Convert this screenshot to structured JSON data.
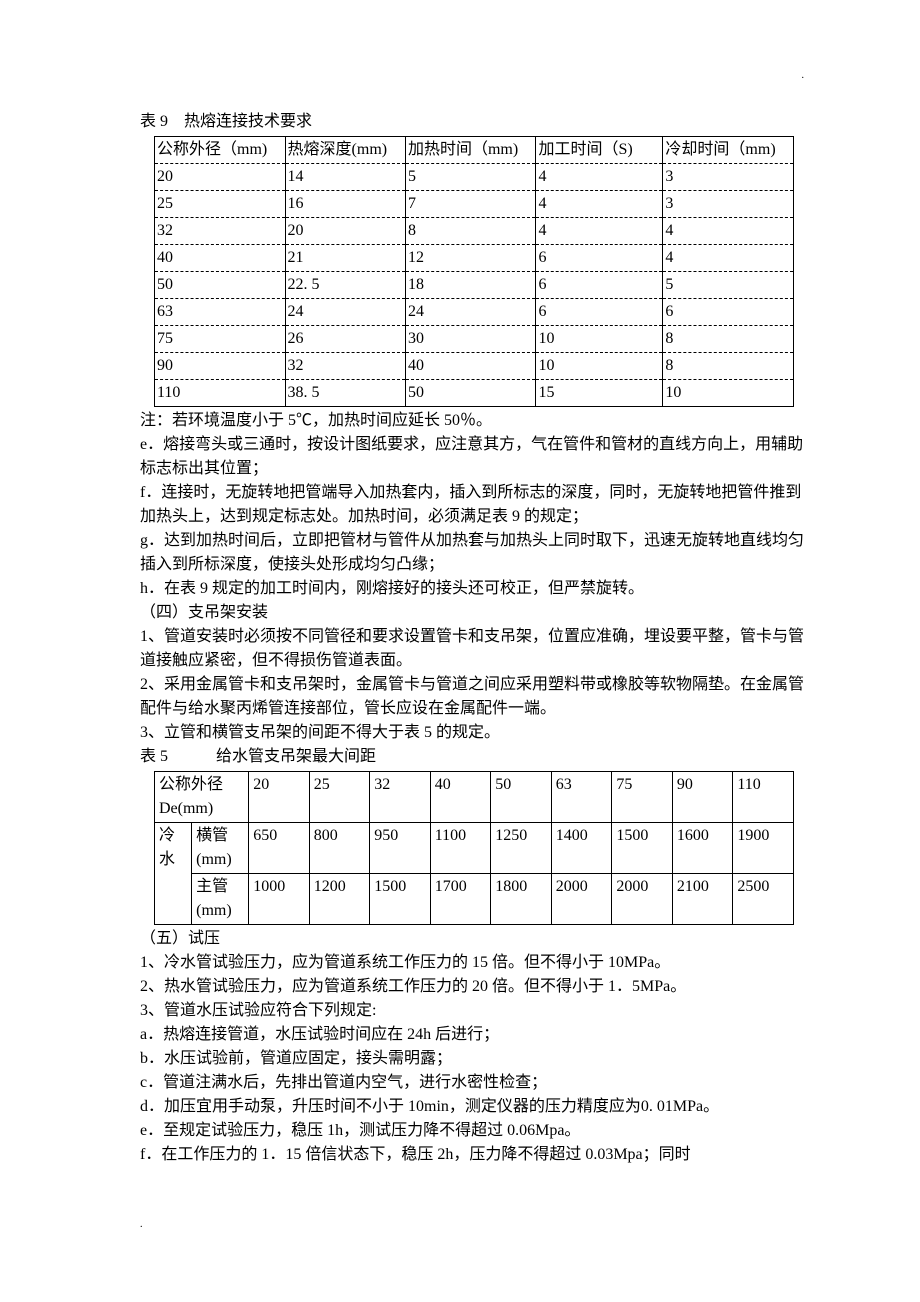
{
  "table9": {
    "title": "表 9　热熔连接技术要求",
    "columns": [
      "公称外径（mm)",
      "热熔深度(mm)",
      "加热时间（mm)",
      "加工时间（S)",
      "冷却时间（mm)"
    ],
    "rows": [
      [
        "20",
        "14",
        "5",
        "4",
        "3"
      ],
      [
        "25",
        "16",
        "7",
        "4",
        "3"
      ],
      [
        "32",
        "20",
        "8",
        "4",
        "4"
      ],
      [
        "40",
        "21",
        "12",
        "6",
        "4"
      ],
      [
        "50",
        "22. 5",
        "18",
        "6",
        "5"
      ],
      [
        "63",
        "24",
        "24",
        "6",
        "6"
      ],
      [
        "75",
        "26",
        "30",
        "10",
        "8"
      ],
      [
        "90",
        "32",
        "40",
        "10",
        "8"
      ],
      [
        "110",
        "38. 5",
        "50",
        "15",
        "10"
      ]
    ],
    "col_widths": [
      "130",
      "120",
      "130",
      "130",
      "130"
    ]
  },
  "paras1": [
    "注：若环境温度小于 5℃，加热时间应延长 50％。",
    "e．熔接弯头或三通时，按设计图纸要求，应注意其方，气在管件和管材的直线方向上，用辅助标志标出其位置；",
    "f．连接时，无旋转地把管端导入加热套内，插入到所标志的深度，同时，无旋转地把管件推到加热头上，达到规定标志处。加热时间，必须满足表 9 的规定；",
    "g．达到加热时间后，立即把管材与管件从加热套与加热头上同时取下，迅速无旋转地直线均匀插入到所标深度，使接头处形成均匀凸缘；",
    "h．在表 9 规定的加工时间内，刚熔接好的接头还可校正，但严禁旋转。",
    "（四）支吊架安装",
    "1、管道安装时必须按不同管径和要求设置管卡和支吊架，位置应准确，埋设要平整，管卡与管道接触应紧密，但不得损伤管道表面。",
    "2、采用金属管卡和支吊架时，金属管卡与管道之间应采用塑料带或橡胶等软物隔垫。在金属管配件与给水聚丙烯管连接部位，管长应设在金属配件一端。",
    "3、立管和横管支吊架的间距不得大于表 5 的规定。"
  ],
  "table5": {
    "title": "表 5　　　给水管支吊架最大间距",
    "diam_header_l1": "公称外径",
    "diam_header_l2": "De(mm)",
    "diams": [
      "20",
      "25",
      "32",
      "40",
      "50",
      "63",
      "75",
      "90",
      "110"
    ],
    "group_l1": "冷",
    "group_l2": "水",
    "row1_label_l1": "横管",
    "row1_label_l2": "(mm)",
    "row1_vals": [
      "650",
      "800",
      "950",
      "1100",
      "1250",
      "1400",
      "1500",
      "1600",
      "1900"
    ],
    "row2_label_l1": "主管",
    "row2_label_l2": "(mm)",
    "row2_vals": [
      "1000",
      "1200",
      "1500",
      "1700",
      "1800",
      "2000",
      "2000",
      "2100",
      "2500"
    ],
    "col_widths": {
      "group": "30",
      "label": "50",
      "data": "55"
    }
  },
  "paras2": [
    "（五）试压",
    "1、冷水管试验压力，应为管道系统工作压力的 15 倍。但不得小于 10MPa。",
    "2、热水管试验压力，应为管道系统工作压力的 20 倍。但不得小于 1．5MPa。",
    "3、管道水压试验应符合下列规定:",
    "a．热熔连接管道，水压试验时间应在 24h 后进行；",
    "b．水压试验前，管道应固定，接头需明露；",
    "c．管道注满水后，先排出管道内空气，进行水密性检查；",
    "d．加压宜用手动泵，升压时间不小于 10min，测定仪器的压力精度应为0. 01MPa。",
    "e．至规定试验压力，稳压 1h，测试压力降不得超过 0.06Mpa。",
    "f．在工作压力的 1．15 倍信状态下，稳压 2h，压力降不得超过 0.03Mpa；同时"
  ],
  "dots": "."
}
